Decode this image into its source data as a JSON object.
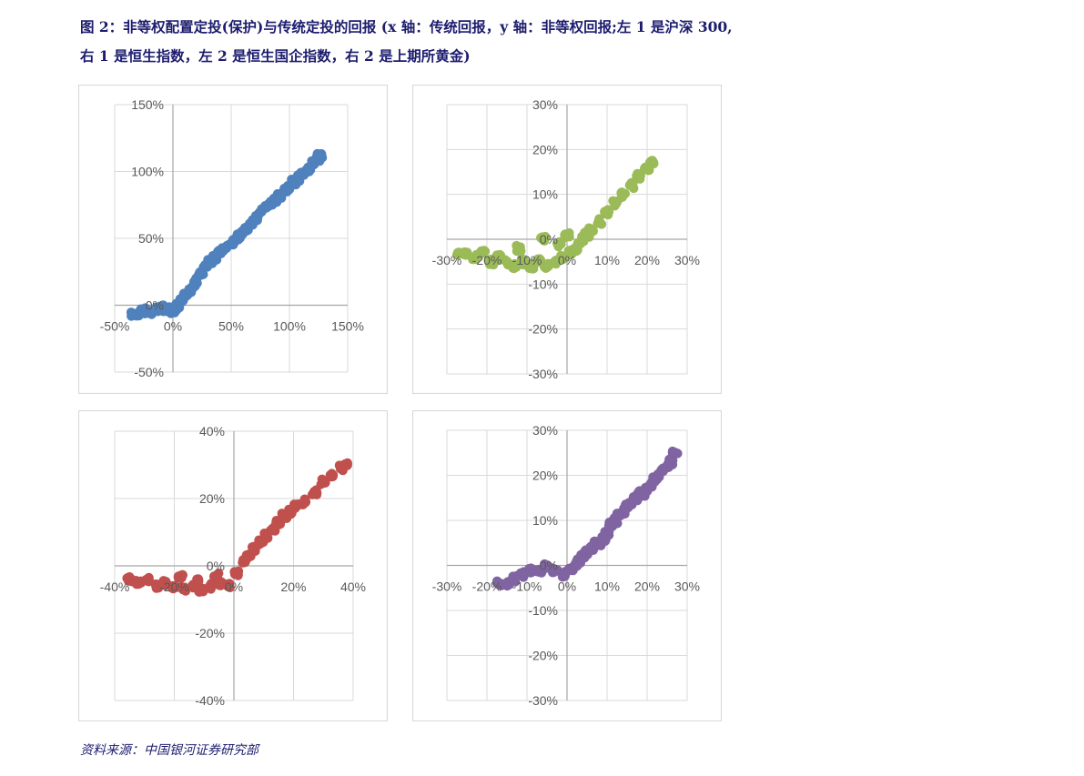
{
  "caption": {
    "line1": "图 2：非等权配置定投(保护)与传统定投的回报 (x 轴：传统回报，y 轴：非等权回报;左 1 是沪深 300,",
    "line2": "右 1 是恒生指数，左 2 是恒生国企指数，右 2 是上期所黄金)"
  },
  "source": "资料来源：中国银河证券研究部",
  "chart_data": [
    {
      "type": "scatter",
      "color": "#4f81bd",
      "xlim": [
        -0.5,
        1.5
      ],
      "ylim": [
        -0.5,
        1.5
      ],
      "xticks": [
        -0.5,
        0,
        0.5,
        1.0,
        1.5
      ],
      "yticks": [
        -0.5,
        0,
        0.5,
        1.0,
        1.5
      ],
      "xtick_labels": [
        "-50%",
        "0%",
        "50%",
        "100%",
        "150%"
      ],
      "ytick_labels": [
        "-50%",
        "0%",
        "50%",
        "100%",
        "150%"
      ],
      "x": [
        -0.34,
        -0.3,
        -0.26,
        -0.22,
        -0.18,
        -0.14,
        -0.1,
        -0.06,
        -0.03,
        0.0,
        0.02,
        0.05,
        0.08,
        0.11,
        0.14,
        0.17,
        0.2,
        0.24,
        0.28,
        0.32,
        0.36,
        0.4,
        0.44,
        0.48,
        0.52,
        0.56,
        0.6,
        0.64,
        0.68,
        0.72,
        0.76,
        0.8,
        0.84,
        0.88,
        0.92,
        0.96,
        1.0,
        1.04,
        1.08,
        1.12,
        1.16,
        1.2,
        1.24,
        1.26
      ],
      "y": [
        -0.07,
        -0.06,
        -0.05,
        -0.04,
        -0.05,
        -0.03,
        -0.02,
        -0.04,
        -0.03,
        -0.04,
        -0.02,
        0.0,
        0.03,
        0.07,
        0.1,
        0.14,
        0.18,
        0.23,
        0.3,
        0.33,
        0.36,
        0.39,
        0.42,
        0.45,
        0.47,
        0.51,
        0.55,
        0.58,
        0.62,
        0.65,
        0.7,
        0.73,
        0.76,
        0.79,
        0.82,
        0.86,
        0.88,
        0.92,
        0.95,
        0.99,
        1.02,
        1.06,
        1.1,
        1.12
      ]
    },
    {
      "type": "scatter",
      "color": "#9bbb59",
      "xlim": [
        -0.3,
        0.3
      ],
      "ylim": [
        -0.3,
        0.3
      ],
      "xticks": [
        -0.3,
        -0.2,
        -0.1,
        0,
        0.1,
        0.2,
        0.3
      ],
      "yticks": [
        -0.3,
        -0.2,
        -0.1,
        0,
        0.1,
        0.2,
        0.3
      ],
      "xtick_labels": [
        "-30%",
        "-20%",
        "-10%",
        "0%",
        "10%",
        "20%",
        "30%"
      ],
      "ytick_labels": [
        "-30%",
        "-20%",
        "-10%",
        "0%",
        "10%",
        "20%",
        "30%"
      ],
      "x": [
        -0.27,
        -0.25,
        -0.23,
        -0.21,
        -0.19,
        -0.17,
        -0.15,
        -0.13,
        -0.11,
        -0.09,
        -0.07,
        -0.05,
        -0.03,
        -0.01,
        0.01,
        0.02,
        0.03,
        0.04,
        0.05,
        0.06,
        0.08,
        0.1,
        0.12,
        0.14,
        0.16,
        0.18,
        0.2,
        0.21,
        -0.12,
        -0.06,
        -0.02,
        0.0
      ],
      "y": [
        -0.03,
        -0.03,
        -0.04,
        -0.03,
        -0.05,
        -0.04,
        -0.05,
        -0.06,
        -0.05,
        -0.06,
        -0.05,
        -0.06,
        -0.05,
        -0.04,
        -0.03,
        -0.02,
        -0.01,
        0.0,
        0.01,
        0.02,
        0.04,
        0.06,
        0.08,
        0.1,
        0.12,
        0.14,
        0.16,
        0.17,
        -0.02,
        0.0,
        -0.01,
        0.01
      ]
    },
    {
      "type": "scatter",
      "color": "#c0504d",
      "xlim": [
        -0.4,
        0.4
      ],
      "ylim": [
        -0.4,
        0.4
      ],
      "xticks": [
        -0.4,
        -0.2,
        0,
        0.2,
        0.4
      ],
      "yticks": [
        -0.4,
        -0.2,
        0,
        0.2,
        0.4
      ],
      "xtick_labels": [
        "-40%",
        "-20%",
        "0%",
        "20%",
        "40%"
      ],
      "ytick_labels": [
        "-40%",
        "-20%",
        "0%",
        "20%",
        "40%"
      ],
      "x": [
        -0.35,
        -0.32,
        -0.29,
        -0.26,
        -0.23,
        -0.2,
        -0.17,
        -0.14,
        -0.11,
        -0.08,
        -0.05,
        -0.02,
        0.01,
        0.03,
        0.05,
        0.07,
        0.09,
        0.11,
        0.13,
        0.15,
        0.17,
        0.19,
        0.21,
        0.24,
        0.27,
        0.3,
        0.33,
        0.36,
        0.38,
        -0.18,
        -0.12,
        -0.06
      ],
      "y": [
        -0.04,
        -0.05,
        -0.04,
        -0.06,
        -0.05,
        -0.06,
        -0.07,
        -0.06,
        -0.07,
        -0.06,
        -0.05,
        -0.06,
        -0.02,
        0.01,
        0.03,
        0.05,
        0.07,
        0.09,
        0.11,
        0.13,
        0.15,
        0.16,
        0.18,
        0.19,
        0.22,
        0.25,
        0.27,
        0.29,
        0.3,
        -0.03,
        -0.04,
        -0.03
      ]
    },
    {
      "type": "scatter",
      "color": "#8064a2",
      "xlim": [
        -0.3,
        0.3
      ],
      "ylim": [
        -0.3,
        0.3
      ],
      "xticks": [
        -0.3,
        -0.2,
        -0.1,
        0,
        0.1,
        0.2,
        0.3
      ],
      "yticks": [
        -0.3,
        -0.2,
        -0.1,
        0,
        0.1,
        0.2,
        0.3
      ],
      "xtick_labels": [
        "-30%",
        "-20%",
        "-10%",
        "0%",
        "10%",
        "20%",
        "30%"
      ],
      "ytick_labels": [
        "-30%",
        "-20%",
        "-10%",
        "0%",
        "10%",
        "20%",
        "30%"
      ],
      "x": [
        -0.17,
        -0.15,
        -0.13,
        -0.11,
        -0.09,
        -0.07,
        -0.05,
        -0.03,
        -0.01,
        0.01,
        0.02,
        0.03,
        0.04,
        0.05,
        0.06,
        0.07,
        0.08,
        0.09,
        0.1,
        0.11,
        0.12,
        0.13,
        0.14,
        0.15,
        0.16,
        0.17,
        0.18,
        0.19,
        0.2,
        0.21,
        0.22,
        0.23,
        0.24,
        0.25,
        0.26,
        0.27
      ],
      "y": [
        -0.04,
        -0.04,
        -0.03,
        -0.02,
        -0.01,
        -0.01,
        0.0,
        -0.01,
        -0.02,
        -0.01,
        0.0,
        0.01,
        0.02,
        0.03,
        0.04,
        0.05,
        0.05,
        0.06,
        0.07,
        0.09,
        0.1,
        0.11,
        0.12,
        0.13,
        0.14,
        0.15,
        0.16,
        0.16,
        0.17,
        0.18,
        0.19,
        0.2,
        0.21,
        0.22,
        0.23,
        0.25
      ]
    }
  ]
}
